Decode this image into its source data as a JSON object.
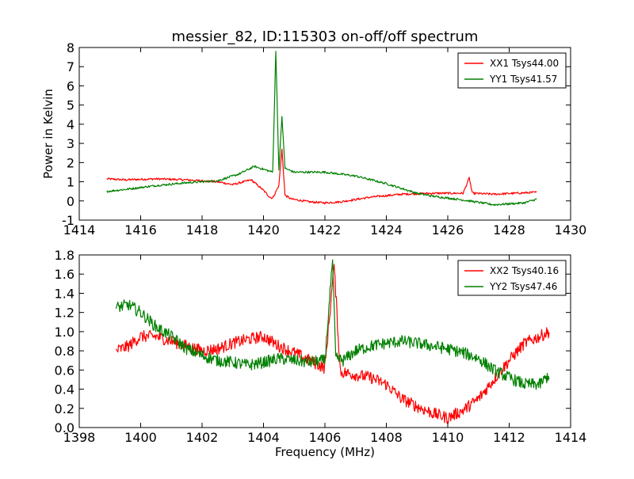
{
  "chart_data": [
    {
      "type": "line",
      "title": "messier_82, ID:115303 on-off/off spectrum",
      "xlabel": "",
      "ylabel": "Power in Kelvin",
      "xlim": [
        1414,
        1430
      ],
      "ylim": [
        -1,
        8
      ],
      "xticks": [
        "1414",
        "1416",
        "1418",
        "1420",
        "1422",
        "1424",
        "1426",
        "1428",
        "1430"
      ],
      "yticks": [
        "-1",
        "0",
        "1",
        "2",
        "3",
        "4",
        "5",
        "6",
        "7",
        "8"
      ],
      "grid": false,
      "legend": "top-right",
      "series": [
        {
          "name": "XX1 Tsys44.00",
          "color": "#ff0000",
          "x": [
            1414.9,
            1415.5,
            1416.5,
            1417.5,
            1418.5,
            1419.0,
            1419.6,
            1420.0,
            1420.2,
            1420.3,
            1420.5,
            1420.6,
            1420.7,
            1420.9,
            1421.5,
            1422.0,
            1422.5,
            1423.5,
            1424.5,
            1425.5,
            1426.5,
            1426.7,
            1426.8,
            1427.5,
            1428.9
          ],
          "values": [
            1.15,
            1.1,
            1.15,
            1.1,
            1.0,
            0.85,
            1.1,
            0.55,
            0.2,
            0.15,
            0.8,
            2.7,
            0.3,
            0.1,
            -0.05,
            -0.1,
            -0.05,
            0.2,
            0.35,
            0.4,
            0.4,
            1.2,
            0.4,
            0.35,
            0.45
          ]
        },
        {
          "name": "YY1 Tsys41.57",
          "color": "#008000",
          "x": [
            1414.9,
            1415.5,
            1416.5,
            1417.5,
            1418.5,
            1419.2,
            1419.7,
            1420.1,
            1420.3,
            1420.4,
            1420.5,
            1420.6,
            1420.7,
            1421.0,
            1422.0,
            1423.0,
            1424.0,
            1425.0,
            1425.5,
            1426.5,
            1427.5,
            1428.5,
            1428.9
          ],
          "values": [
            0.5,
            0.6,
            0.8,
            0.95,
            1.05,
            1.4,
            1.8,
            1.6,
            1.5,
            7.8,
            1.6,
            4.4,
            1.7,
            1.5,
            1.5,
            1.3,
            0.9,
            0.4,
            0.25,
            0.05,
            -0.2,
            -0.1,
            0.1
          ]
        }
      ]
    },
    {
      "type": "line",
      "title": "",
      "xlabel": "Frequency (MHz)",
      "ylabel": "",
      "xlim": [
        1398,
        1414
      ],
      "ylim": [
        0.0,
        1.8
      ],
      "xticks": [
        "1398",
        "1400",
        "1402",
        "1404",
        "1406",
        "1408",
        "1410",
        "1412",
        "1414"
      ],
      "yticks": [
        "0.0",
        "0.2",
        "0.4",
        "0.6",
        "0.8",
        "1.0",
        "1.2",
        "1.4",
        "1.6",
        "1.8"
      ],
      "grid": false,
      "legend": "top-right",
      "series": [
        {
          "name": "XX2 Tsys40.16",
          "color": "#ff0000",
          "x": [
            1399.2,
            1399.6,
            1400.0,
            1400.5,
            1401.0,
            1401.5,
            1402.0,
            1402.5,
            1403.0,
            1403.5,
            1404.0,
            1404.5,
            1405.0,
            1405.5,
            1406.0,
            1406.3,
            1406.5,
            1407.0,
            1407.5,
            1408.0,
            1408.5,
            1409.0,
            1409.5,
            1410.0,
            1410.5,
            1411.0,
            1411.5,
            1412.0,
            1412.5,
            1413.0,
            1413.3
          ],
          "values": [
            0.8,
            0.85,
            0.95,
            0.95,
            0.9,
            0.85,
            0.8,
            0.82,
            0.88,
            0.92,
            0.95,
            0.85,
            0.78,
            0.7,
            0.62,
            1.7,
            0.58,
            0.55,
            0.52,
            0.45,
            0.3,
            0.22,
            0.15,
            0.1,
            0.18,
            0.3,
            0.5,
            0.7,
            0.88,
            0.95,
            1.0
          ]
        },
        {
          "name": "YY2 Tsys47.46",
          "color": "#008000",
          "x": [
            1399.2,
            1399.6,
            1400.0,
            1400.5,
            1401.0,
            1401.5,
            1402.0,
            1402.5,
            1403.0,
            1403.5,
            1404.0,
            1404.5,
            1405.0,
            1405.5,
            1406.0,
            1406.25,
            1406.35,
            1406.6,
            1407.0,
            1407.5,
            1408.0,
            1408.5,
            1409.0,
            1409.5,
            1410.0,
            1410.5,
            1411.0,
            1411.5,
            1412.0,
            1412.5,
            1413.0,
            1413.3
          ],
          "values": [
            1.25,
            1.28,
            1.2,
            1.05,
            0.95,
            0.82,
            0.75,
            0.7,
            0.68,
            0.65,
            0.68,
            0.72,
            0.7,
            0.68,
            0.7,
            1.75,
            0.72,
            0.7,
            0.8,
            0.85,
            0.88,
            0.9,
            0.88,
            0.85,
            0.82,
            0.78,
            0.72,
            0.6,
            0.52,
            0.45,
            0.45,
            0.55
          ]
        }
      ]
    }
  ]
}
